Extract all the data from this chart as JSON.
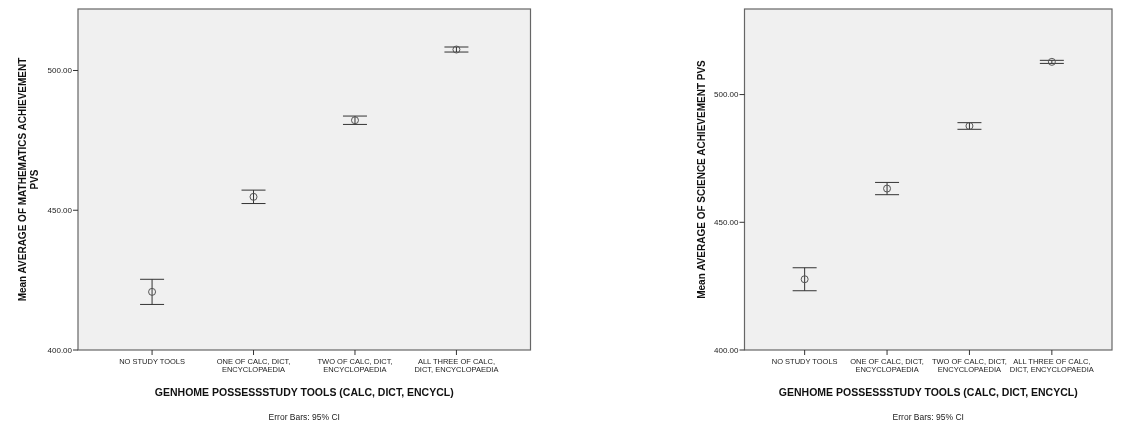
{
  "chart_data": [
    {
      "type": "scatter",
      "xlabel": "GENHOME POSSESSSTUDY TOOLS (CALC, DICT, ENCYCL)",
      "ylabel": "Mean AVERAGE OF MATHEMATICS ACHIEVEMENT PVS",
      "categories": [
        "NO STUDY TOOLS",
        "ONE OF CALC, DICT, ENCYCLOPAEDIA",
        "TWO OF CALC, DICT, ENCYCLOPAEDIA",
        "ALL THREE OF CALC, DICT, ENCYCLOPAEDIA"
      ],
      "series": [
        {
          "color": "#555555",
          "values": [
            420.8,
            454.8,
            482.2,
            507.5
          ],
          "errors": [
            4.5,
            2.4,
            1.5,
            0.9
          ]
        }
      ],
      "ylim": [
        400,
        522
      ],
      "yticks": [
        {
          "value": 400,
          "label": "400.00"
        },
        {
          "value": 450,
          "label": "450.00"
        },
        {
          "value": 500,
          "label": "500.00"
        }
      ],
      "marker": "circle",
      "grid": false,
      "annotations": [
        "Error Bars: 95% CI"
      ]
    },
    {
      "type": "scatter",
      "xlabel": "GENHOME POSSESSSTUDY TOOLS (CALC, DICT, ENCYCL)",
      "ylabel": "Mean AVERAGE OF SCIENCE ACHIEVEMENT PVS",
      "categories": [
        "NO STUDY TOOLS",
        "ONE OF CALC, DICT, ENCYCLOPAEDIA",
        "TWO OF CALC, DICT, ENCYCLOPAEDIA",
        "ALL THREE OF CALC, DICT, ENCYCLOPAEDIA"
      ],
      "series": [
        {
          "color": "#555555",
          "values": [
            427.7,
            463.2,
            487.7,
            512.8
          ],
          "errors": [
            4.5,
            2.4,
            1.3,
            0.6
          ]
        }
      ],
      "ylim": [
        400,
        533.5
      ],
      "yticks": [
        {
          "value": 400,
          "label": "400.00"
        },
        {
          "value": 450,
          "label": "450.00"
        },
        {
          "value": 500,
          "label": "500.00"
        }
      ],
      "marker": "circle",
      "grid": false,
      "annotations": [
        "Error Bars: 95% CI"
      ]
    }
  ]
}
